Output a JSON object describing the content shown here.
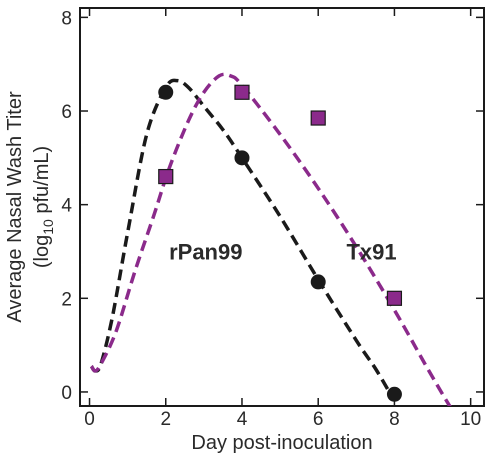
{
  "chart_data": {
    "type": "scatter",
    "xlabel": "Day post-inoculation",
    "ylabel_line1": "Average Nasal Wash Titer",
    "ylabel_line2_pre": "(log",
    "ylabel_line2_sub": "10",
    "ylabel_line2_post": " pfu/mL)",
    "xlim": [
      -0.25,
      10.35
    ],
    "ylim": [
      -0.3,
      8.2
    ],
    "xticks": [
      0,
      2,
      4,
      6,
      8,
      10
    ],
    "yticks": [
      0,
      2,
      4,
      6,
      8
    ],
    "xtick_labels": [
      "0",
      "2",
      "4",
      "6",
      "8",
      "10"
    ],
    "ytick_labels": [
      "0",
      "2",
      "4",
      "6",
      "8"
    ],
    "grid": false,
    "legend": "none",
    "series": [
      {
        "name": "rPan99",
        "marker": "circle",
        "color": "#1a1a1a",
        "x": [
          2,
          4,
          6,
          8
        ],
        "y": [
          6.4,
          5.0,
          2.35,
          -0.05
        ],
        "fit": {
          "style": "dashed",
          "points": [
            [
              0.05,
              0.55
            ],
            [
              0.15,
              0.45
            ],
            [
              0.3,
              0.6
            ],
            [
              0.6,
              1.6
            ],
            [
              1.0,
              3.4
            ],
            [
              1.5,
              5.5
            ],
            [
              2.0,
              6.5
            ],
            [
              2.3,
              6.65
            ],
            [
              2.6,
              6.5
            ],
            [
              3.0,
              6.1
            ],
            [
              3.5,
              5.6
            ],
            [
              4.0,
              5.0
            ],
            [
              5.0,
              3.75
            ],
            [
              6.0,
              2.4
            ],
            [
              7.0,
              1.1
            ],
            [
              7.5,
              0.5
            ],
            [
              7.9,
              -0.05
            ]
          ]
        }
      },
      {
        "name": "Tx91",
        "marker": "square",
        "color": "#8b2a8b",
        "x": [
          2,
          4,
          6,
          8
        ],
        "y": [
          4.6,
          6.4,
          5.85,
          2.0
        ],
        "fit": {
          "style": "dashed",
          "points": [
            [
              0.05,
              0.55
            ],
            [
              0.15,
              0.45
            ],
            [
              0.3,
              0.6
            ],
            [
              0.7,
              1.3
            ],
            [
              1.2,
              2.6
            ],
            [
              1.7,
              3.8
            ],
            [
              2.1,
              4.8
            ],
            [
              2.6,
              5.8
            ],
            [
              3.0,
              6.4
            ],
            [
              3.4,
              6.75
            ],
            [
              3.7,
              6.75
            ],
            [
              4.0,
              6.55
            ],
            [
              5.0,
              5.5
            ],
            [
              6.0,
              4.35
            ],
            [
              7.0,
              3.1
            ],
            [
              8.0,
              1.75
            ],
            [
              8.8,
              0.6
            ],
            [
              9.3,
              -0.1
            ],
            [
              9.6,
              -0.5
            ]
          ]
        }
      }
    ],
    "annotations": [
      {
        "text": "rPan99",
        "x": 3.05,
        "y": 3.0
      },
      {
        "text": "Tx91",
        "x": 7.4,
        "y": 3.0
      }
    ]
  }
}
